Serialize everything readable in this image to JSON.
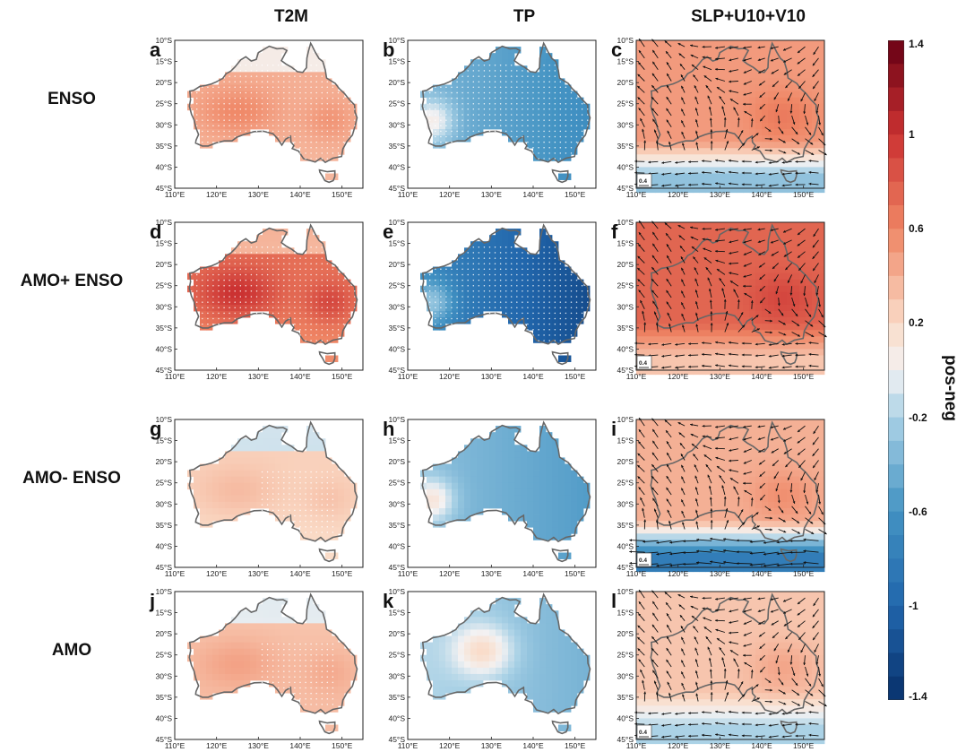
{
  "columns": [
    {
      "title": "T2M"
    },
    {
      "title": "TP"
    },
    {
      "title": "SLP+U10+V10"
    }
  ],
  "rows": [
    {
      "label": "ENSO"
    },
    {
      "label": "AMO+ ENSO"
    },
    {
      "label": "AMO- ENSO"
    },
    {
      "label": "AMO"
    }
  ],
  "panels": [
    {
      "letter": "a",
      "variable": "T2M",
      "field": "warm",
      "level": 0.55,
      "south_level": 0.45,
      "stipple": "dense"
    },
    {
      "letter": "b",
      "variable": "TP",
      "field": "wet-cool",
      "level": -0.6,
      "stipple": "dense"
    },
    {
      "letter": "c",
      "variable": "SLP+U10+V10",
      "field": "slp",
      "level": 0.5,
      "south_level": -0.3,
      "vectors": true
    },
    {
      "letter": "d",
      "variable": "T2M",
      "field": "warm",
      "level": 1.0,
      "south_level": 0.6,
      "stipple": "dense"
    },
    {
      "letter": "e",
      "variable": "TP",
      "field": "wet-cool",
      "level": -1.1,
      "stipple": "dense"
    },
    {
      "letter": "f",
      "variable": "SLP+U10+V10",
      "field": "slp",
      "level": 0.75,
      "south_level": 0.3,
      "vectors": true
    },
    {
      "letter": "g",
      "variable": "T2M",
      "field": "warm",
      "level": 0.35,
      "south_level": 0.2,
      "stipple": "partial"
    },
    {
      "letter": "h",
      "variable": "TP",
      "field": "wet-cool",
      "level": -0.5,
      "stipple": "none"
    },
    {
      "letter": "i",
      "variable": "SLP+U10+V10",
      "field": "slp",
      "level": 0.4,
      "south_level": -0.8,
      "vectors": true
    },
    {
      "letter": "j",
      "variable": "T2M",
      "field": "warm",
      "level": 0.4,
      "south_level": 0.5,
      "stipple": "partial"
    },
    {
      "letter": "k",
      "variable": "TP",
      "field": "mixed",
      "level": -0.2,
      "stipple": "none"
    },
    {
      "letter": "l",
      "variable": "SLP+U10+V10",
      "field": "slp",
      "level": 0.3,
      "south_level": -0.2,
      "vectors": true
    }
  ],
  "map_axes": {
    "lat_labels": [
      "10°S",
      "15°S",
      "20°S",
      "25°S",
      "30°S",
      "35°S",
      "40°S",
      "45°S"
    ],
    "lat_values": [
      -10,
      -15,
      -20,
      -25,
      -30,
      -35,
      -40,
      -45
    ],
    "lon_labels": [
      "110°E",
      "120°E",
      "130°E",
      "140°E",
      "150°E"
    ],
    "lon_values": [
      110,
      120,
      130,
      140,
      150
    ],
    "lon_range": [
      110,
      155
    ],
    "lat_range": [
      -45,
      -10
    ]
  },
  "vector_scale_label": "0.4",
  "colorbar": {
    "label": "pos-neg",
    "min": -1.4,
    "max": 1.4,
    "ticks": [
      "1.4",
      "1",
      "0.6",
      "0.2",
      "-0.2",
      "-0.6",
      "-1",
      "-1.4"
    ],
    "tick_values": [
      1.4,
      1.0,
      0.6,
      0.2,
      -0.2,
      -0.6,
      -1.0,
      -1.4
    ],
    "steps": 28
  }
}
